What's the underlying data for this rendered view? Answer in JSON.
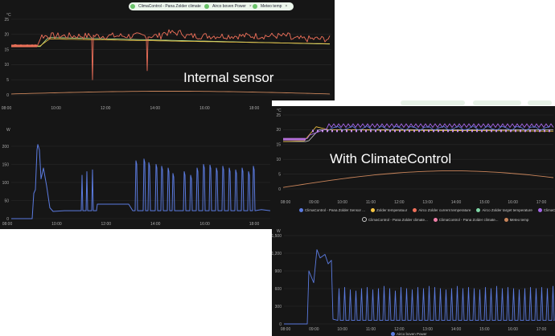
{
  "top_chips": [
    {
      "label": "ClimaControl - Pana Zolder climate",
      "close": "×"
    },
    {
      "label": "Airco boven Power",
      "close": "×"
    },
    {
      "label": "Meteo temp",
      "close": "×"
    }
  ],
  "panel1": {
    "unit": "°C",
    "y_ticks": [
      "25",
      "20",
      "15",
      "10",
      "5",
      "0"
    ],
    "x_ticks": [
      "08:00",
      "10:00",
      "12:00",
      "14:00",
      "16:00",
      "18:00"
    ],
    "overlay": "Internal sensor",
    "legend": [
      {
        "label": "Zolder temperatuur",
        "color": "#f5c542",
        "outline": false
      },
      {
        "label": "Airco Zolder current temperature",
        "color": "#f0705a",
        "outline": false
      },
      {
        "label": "Airco Zolder target temperature",
        "color": "#7fd6a6",
        "outline": false
      },
      {
        "label": "Meteo temp",
        "color": "#c8845a",
        "outline": false
      }
    ]
  },
  "panel2": {
    "unit": "W",
    "y_ticks": [
      "200",
      "150",
      "100",
      "50",
      "0"
    ],
    "x_ticks": [
      "08:00",
      "10:00",
      "12:00",
      "14:00",
      "16:00",
      "18:00"
    ]
  },
  "panel3": {
    "unit": "°C",
    "y_ticks": [
      "25",
      "20",
      "15",
      "10",
      "5",
      "0"
    ],
    "x_ticks": [
      "08:00",
      "09:00",
      "10:00",
      "11:00",
      "12:00",
      "13:00",
      "14:00",
      "15:00",
      "16:00",
      "17:00"
    ],
    "overlay": "With ClimateControl",
    "legend_row1": [
      {
        "label": "ClimaControl - Pana Zolder Sensor ...",
        "color": "#5b7be0",
        "outline": false
      },
      {
        "label": "Zolder temperatuur",
        "color": "#f5c542",
        "outline": false
      },
      {
        "label": "Airco Zolder current temperature",
        "color": "#f0705a",
        "outline": false
      },
      {
        "label": "Airco Zolder target temperature",
        "color": "#7fd6a6",
        "outline": false
      },
      {
        "label": "ClimaControl - Pana Z",
        "color": "#a566e8",
        "outline": false
      }
    ],
    "legend_row2": [
      {
        "label": "ClimaControl - Pana Zolder climate...",
        "color": "#cccccc",
        "outline": true
      },
      {
        "label": "ClimaControl - Pana Zolder climate...",
        "color": "#f07fa8",
        "outline": false
      },
      {
        "label": "Meteo temp",
        "color": "#c8845a",
        "outline": false
      }
    ]
  },
  "panel4": {
    "unit": "W",
    "y_ticks": [
      "1,500",
      "1,200",
      "900",
      "600",
      "300",
      "0"
    ],
    "x_ticks": [
      "08:00",
      "09:00",
      "10:00",
      "11:00",
      "12:00",
      "13:00",
      "14:00",
      "15:00",
      "16:00",
      "17:00"
    ],
    "legend": [
      {
        "label": "Airco boven Power",
        "color": "#5b7be0",
        "outline": false
      }
    ]
  }
}
